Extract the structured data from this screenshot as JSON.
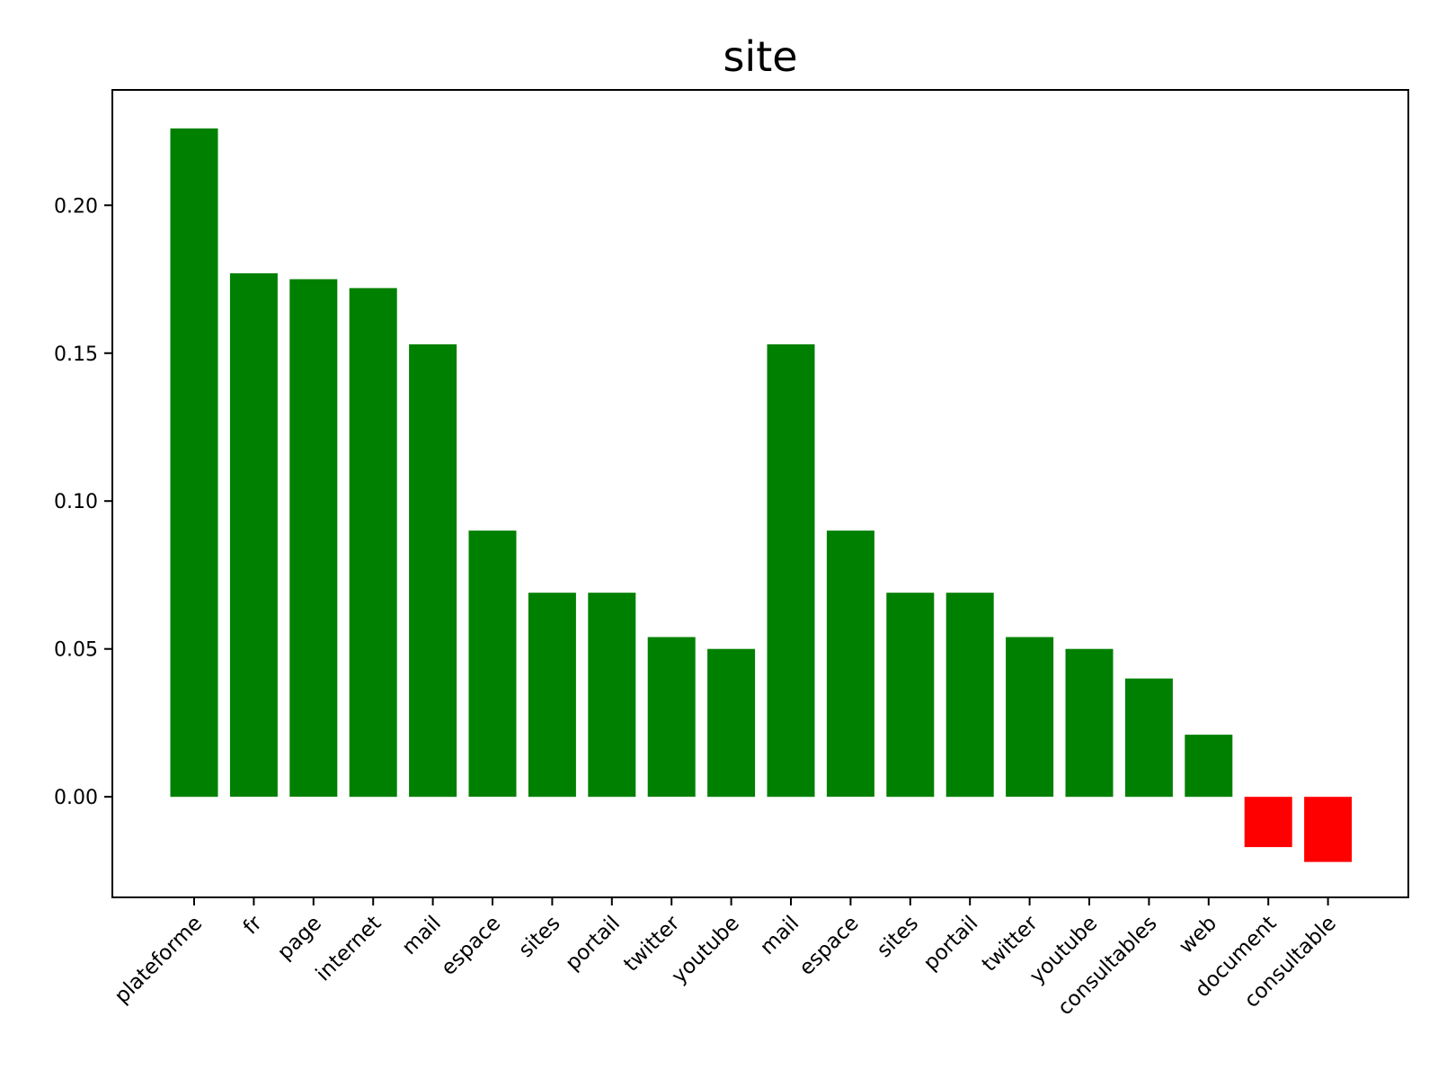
{
  "chart_data": {
    "type": "bar",
    "title": "site",
    "xlabel": "",
    "ylabel": "",
    "categories": [
      "plateforme",
      "fr",
      "page",
      "internet",
      "mail",
      "espace",
      "sites",
      "portail",
      "twitter",
      "youtube",
      "mail",
      "espace",
      "sites",
      "portail",
      "twitter",
      "youtube",
      "consultables",
      "web",
      "document",
      "consultable"
    ],
    "values": [
      0.226,
      0.177,
      0.175,
      0.172,
      0.153,
      0.09,
      0.069,
      0.069,
      0.054,
      0.05,
      0.153,
      0.09,
      0.069,
      0.069,
      0.054,
      0.05,
      0.04,
      0.021,
      -0.017,
      -0.022
    ],
    "ylim": [
      -0.034,
      0.239
    ],
    "yticks": [
      "0.00",
      "0.05",
      "0.10",
      "0.15",
      "0.20"
    ],
    "positive_color": "#008000",
    "negative_color": "#ff0000",
    "grid": false,
    "legend": "none"
  }
}
